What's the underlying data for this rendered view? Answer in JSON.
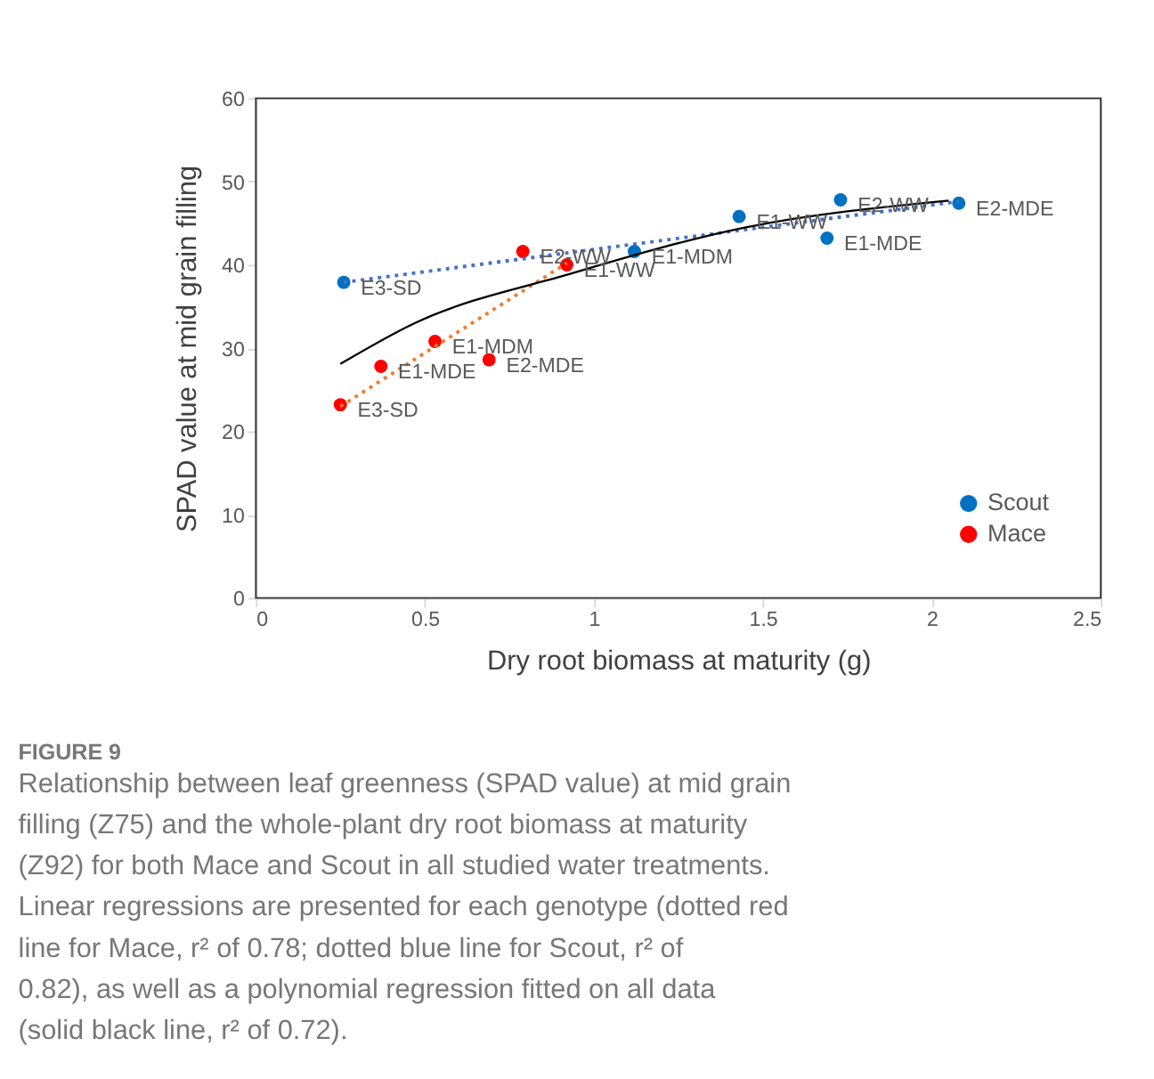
{
  "chart_data": {
    "type": "scatter",
    "title": "FIGURE 9",
    "subtitle": "Relationship between leaf greenness (SPAD value) at mid grain filling (Z75) and the whole-plant dry root biomass at maturity (Z92) for both Mace and Scout in all studied water treatments. Linear regressions are presented for each genotype (dotted red line for Mace, r² of 0.78; dotted blue line for Scout, r² of 0.82), as well as a polynomial regression fitted on all data (solid black line, r² of 0.72).",
    "xlabel": "Dry root biomass at maturity (g)",
    "ylabel": "SPAD value at mid grain filling",
    "xlim": [
      0,
      2.5
    ],
    "xticks": [
      0,
      0.5,
      1,
      1.5,
      2,
      2.5
    ],
    "ylim": [
      0,
      60
    ],
    "yticks": [
      0,
      10,
      20,
      30,
      40,
      50,
      60
    ],
    "grid": false,
    "legend": "bottom right",
    "marker": "circle",
    "series": [
      {
        "name": "Scout",
        "color": "#0070c0",
        "x": [
          0.26,
          1.12,
          1.43,
          1.73,
          1.69,
          2.08
        ],
        "values": [
          37.9,
          41.6,
          45.8,
          47.8,
          43.2,
          47.4
        ]
      },
      {
        "name": "Mace",
        "color": "#ff0000",
        "x": [
          0.79,
          0.92,
          0.53,
          0.37,
          0.69,
          0.25
        ],
        "values": [
          41.6,
          40.0,
          30.8,
          27.8,
          28.6,
          23.2
        ]
      },
      {
        "type": "line",
        "marker": "none",
        "line_style": "dotted",
        "color": "#4472c4",
        "x": [
          0.26,
          2.08
        ],
        "values": [
          37.9,
          47.6
        ]
      },
      {
        "type": "line",
        "marker": "none",
        "line_style": "dotted",
        "color": "#ed7d31",
        "x": [
          0.25,
          0.92
        ],
        "values": [
          23.0,
          40.2
        ]
      },
      {
        "type": "line",
        "marker": "none",
        "line_style": "solid",
        "color": "#000000",
        "x": [
          0.25,
          0.47,
          0.92,
          1.45,
          2.05
        ],
        "values": [
          28.1,
          33.0,
          38.8,
          44.5,
          47.7
        ]
      }
    ],
    "annotations": [
      {
        "text": "E3-SD",
        "x": 0.26,
        "y": 37.9
      },
      {
        "text": "E1-MDM",
        "x": 1.12,
        "y": 41.6
      },
      {
        "text": "E1-WW",
        "x": 1.43,
        "y": 45.8
      },
      {
        "text": "E2-WW",
        "x": 1.73,
        "y": 47.8
      },
      {
        "text": "E1-MDE",
        "x": 1.69,
        "y": 43.2
      },
      {
        "text": "E2-MDE",
        "x": 2.08,
        "y": 47.4
      },
      {
        "text": "E2-WW",
        "x": 0.79,
        "y": 41.6
      },
      {
        "text": "E1-WW",
        "x": 0.92,
        "y": 40.0
      },
      {
        "text": "E1-MDM",
        "x": 0.53,
        "y": 30.8
      },
      {
        "text": "E1-MDE",
        "x": 0.37,
        "y": 27.8
      },
      {
        "text": "E2-MDE",
        "x": 0.69,
        "y": 28.6
      },
      {
        "text": "E3-SD",
        "x": 0.25,
        "y": 23.2
      }
    ]
  }
}
